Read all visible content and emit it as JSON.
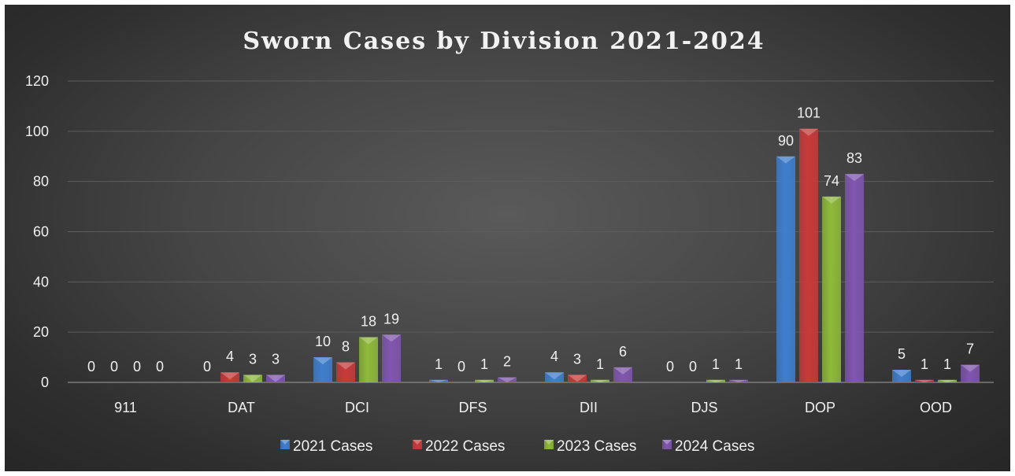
{
  "chart_data": {
    "type": "bar",
    "title": "Sworn Cases by Division 2021-2024",
    "categories": [
      "911",
      "DAT",
      "DCI",
      "DFS",
      "DII",
      "DJS",
      "DOP",
      "OOD"
    ],
    "series": [
      {
        "name": "2021 Cases",
        "color": "#3f7fcf",
        "values": [
          0,
          0,
          10,
          1,
          4,
          0,
          90,
          5
        ]
      },
      {
        "name": "2022 Cases",
        "color": "#c93a3a",
        "values": [
          0,
          4,
          8,
          0,
          3,
          0,
          101,
          1
        ]
      },
      {
        "name": "2023 Cases",
        "color": "#8fba3a",
        "values": [
          0,
          3,
          18,
          1,
          1,
          1,
          74,
          1
        ]
      },
      {
        "name": "2024 Cases",
        "color": "#8056b0",
        "values": [
          0,
          3,
          19,
          2,
          6,
          1,
          83,
          7
        ]
      }
    ],
    "ylim": [
      0,
      120
    ],
    "yticks": [
      "0",
      "20",
      "40",
      "60",
      "80",
      "100",
      "120"
    ],
    "grid": true,
    "legend": "bottom",
    "data_labels": true
  }
}
